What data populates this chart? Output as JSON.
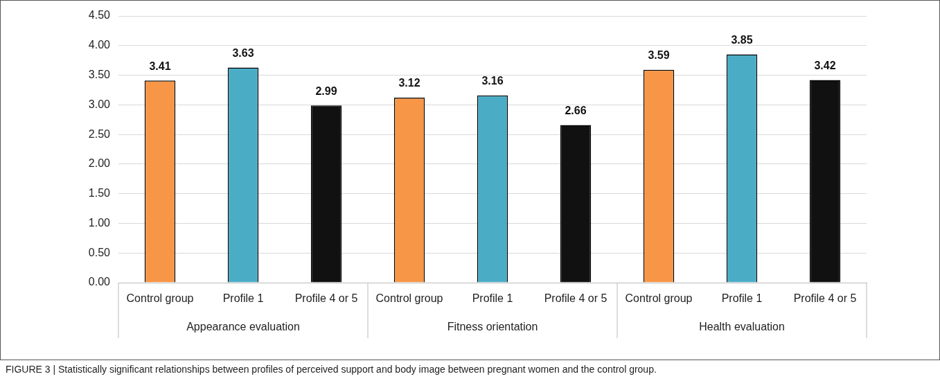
{
  "chart_data": {
    "type": "bar",
    "categories": [
      "Control group",
      "Profile 1",
      "Profile 4 or 5",
      "Control group",
      "Profile 1",
      "Profile 4 or 5",
      "Control group",
      "Profile 1",
      "Profile 4 or 5"
    ],
    "values": [
      3.41,
      3.63,
      2.99,
      3.12,
      3.16,
      2.66,
      3.59,
      3.85,
      3.42
    ],
    "colors": [
      "#f79646",
      "#4bacc6",
      "#111111",
      "#f79646",
      "#4bacc6",
      "#111111",
      "#f79646",
      "#4bacc6",
      "#111111"
    ],
    "ylim": [
      0,
      4.5
    ],
    "yticks": [
      {
        "value": 0,
        "label": "0.00"
      },
      {
        "value": 0.5,
        "label": "0.50"
      },
      {
        "value": 1,
        "label": "1.00"
      },
      {
        "value": 1.5,
        "label": "1.50"
      },
      {
        "value": 2,
        "label": "2.00"
      },
      {
        "value": 2.5,
        "label": "2.50"
      },
      {
        "value": 3,
        "label": "3.00"
      },
      {
        "value": 3.5,
        "label": "3.50"
      },
      {
        "value": 4,
        "label": "4.00"
      },
      {
        "value": 4.5,
        "label": "4.50"
      }
    ],
    "grid": "y",
    "legend": false,
    "data_labels": true,
    "annotations": [
      "Appearance evaluation",
      "Fitness orientation",
      "Health evaluation",
      "FIGURE 3 | Statistically significant relationships between profiles of perceived support and body image between pregnant women and the control group."
    ]
  }
}
